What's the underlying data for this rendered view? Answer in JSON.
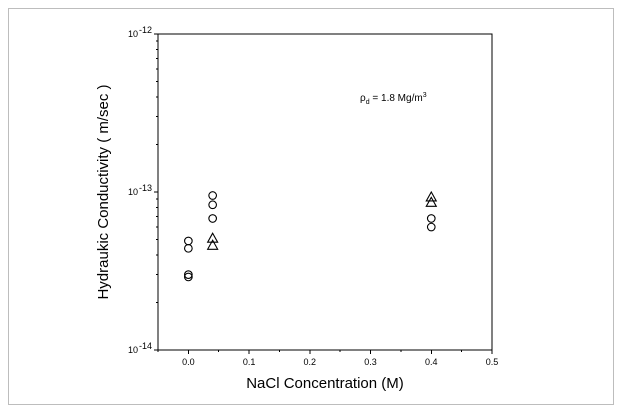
{
  "chart_data": {
    "type": "scatter",
    "title": "",
    "xlabel": "NaCl  Concentration  (M)",
    "ylabel": "Hydraukic Conductivity  ( m/sec )",
    "xlim": [
      -0.05,
      0.5
    ],
    "ylim": [
      1e-14,
      1e-12
    ],
    "yscale": "log",
    "x_ticks": [
      0.0,
      0.1,
      0.2,
      0.3,
      0.4,
      0.5
    ],
    "x_tick_labels": [
      "0.0",
      "0.1",
      "0.2",
      "0.3",
      "0.4",
      "0.5"
    ],
    "y_ticks": [
      {
        "value": 1e-14,
        "mantissa": "10",
        "exponent": "-14"
      },
      {
        "value": 1e-13,
        "mantissa": "10",
        "exponent": "-13"
      },
      {
        "value": 1e-12,
        "mantissa": "10",
        "exponent": "-12"
      }
    ],
    "annotation": {
      "rho": "ρ",
      "sub": "d",
      "text": " = 1.8 Mg/m",
      "sup": "3"
    },
    "grid": false,
    "series": [
      {
        "marker": "circle",
        "points": [
          {
            "x": 0.0,
            "y": 4.9e-14
          },
          {
            "x": 0.0,
            "y": 4.4e-14
          },
          {
            "x": 0.0,
            "y": 3e-14
          },
          {
            "x": 0.0,
            "y": 2.9e-14
          },
          {
            "x": 0.04,
            "y": 9.5e-14
          },
          {
            "x": 0.04,
            "y": 8.3e-14
          },
          {
            "x": 0.04,
            "y": 6.8e-14
          },
          {
            "x": 0.4,
            "y": 6.8e-14
          },
          {
            "x": 0.4,
            "y": 6e-14
          }
        ]
      },
      {
        "marker": "triangle",
        "points": [
          {
            "x": 0.04,
            "y": 5.1e-14
          },
          {
            "x": 0.04,
            "y": 4.6e-14
          },
          {
            "x": 0.4,
            "y": 9.3e-14
          },
          {
            "x": 0.4,
            "y": 8.6e-14
          }
        ]
      }
    ]
  }
}
